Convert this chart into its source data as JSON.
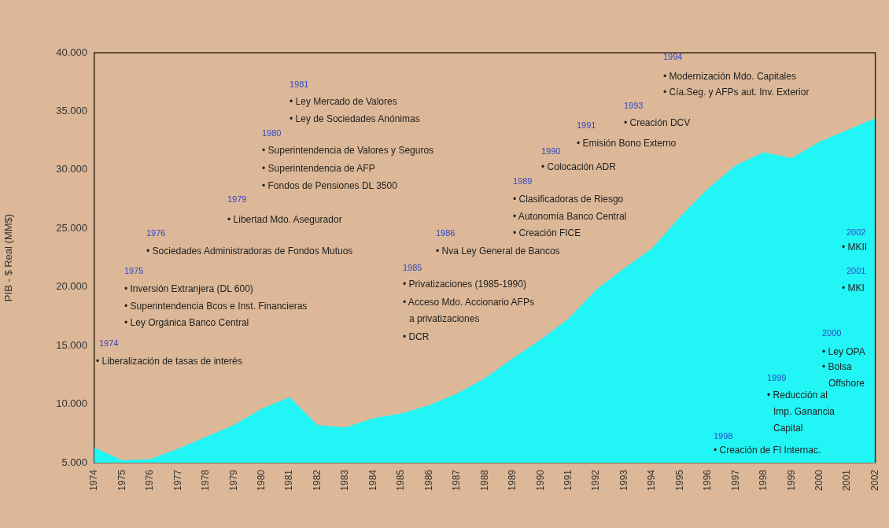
{
  "chart_data": {
    "type": "area",
    "ylabel": "PIB - $ Real (MM$)",
    "categories": [
      "1974",
      "1975",
      "1976",
      "1977",
      "1978",
      "1979",
      "1980",
      "1981",
      "1982",
      "1983",
      "1984",
      "1985",
      "1986",
      "1987",
      "1988",
      "1989",
      "1990",
      "1991",
      "1992",
      "1993",
      "1994",
      "1995",
      "1996",
      "1997",
      "1998",
      "1999",
      "2000",
      "2001",
      "2002"
    ],
    "series": [
      {
        "color": "#22f5f5",
        "values": [
          6300,
          5200,
          5300,
          6200,
          7200,
          8200,
          9600,
          10600,
          8200,
          8000,
          8800,
          9200,
          9900,
          10900,
          12200,
          13900,
          15500,
          17300,
          19800,
          21600,
          23300,
          26000,
          28400,
          30400,
          31500,
          31000,
          32400,
          33400,
          34400
        ]
      }
    ],
    "ylim": [
      5000,
      40000
    ],
    "yticks": [
      {
        "value": 5000,
        "label": "5.000"
      },
      {
        "value": 10000,
        "label": "10.000"
      },
      {
        "value": 15000,
        "label": "15.000"
      },
      {
        "value": 20000,
        "label": "20.000"
      },
      {
        "value": 25000,
        "label": "25.000"
      },
      {
        "value": 30000,
        "label": "30.000"
      },
      {
        "value": 35000,
        "label": "35.000"
      },
      {
        "value": 40000,
        "label": "40.000"
      }
    ],
    "grid": false,
    "legend": false,
    "annotations": [
      "1974",
      "• Liberalización de tasas de interés",
      "1975",
      "• Inversión Extranjera (DL 600)",
      "• Superintendencia Bcos e Inst. Financieras",
      "• Ley Orgánica Banco Central",
      "1976",
      "• Sociedades Administradoras de Fondos Mutuos",
      "1979",
      "• Libertad Mdo. Asegurador",
      "1980",
      "• Superintendencia de Valores y Seguros",
      "• Superintendencia de AFP",
      "• Fondos de Pensiones DL 3500",
      "1981",
      "• Ley Mercado de Valores",
      "• Ley de Sociedades Anónimas",
      "1985",
      "• Privatizaciones (1985-1990)",
      "• Acceso Mdo. Accionario AFPs",
      "a privatizaciones",
      "• DCR",
      "1986",
      "• Nva Ley General de Bancos",
      "1989",
      "• Clasificadoras de Riesgo",
      "• Autonomía Banco Central",
      "• Creación FICE",
      "1990",
      "• Colocación ADR",
      "1991",
      "• Emisión Bono Externo",
      "1993",
      "• Creación DCV",
      "1994",
      "• Modernización Mdo. Capitales",
      "• Cía.Seg. y AFPs aut. Inv. Exterior",
      "1998",
      "• Creación de FI Internac.",
      "1999",
      "• Reducción al",
      "Imp. Ganancia",
      "Capital",
      "2000",
      "• Ley OPA",
      "• Bolsa",
      "Offshore",
      "2001",
      "• MKI",
      "2002",
      "• MKII"
    ]
  }
}
